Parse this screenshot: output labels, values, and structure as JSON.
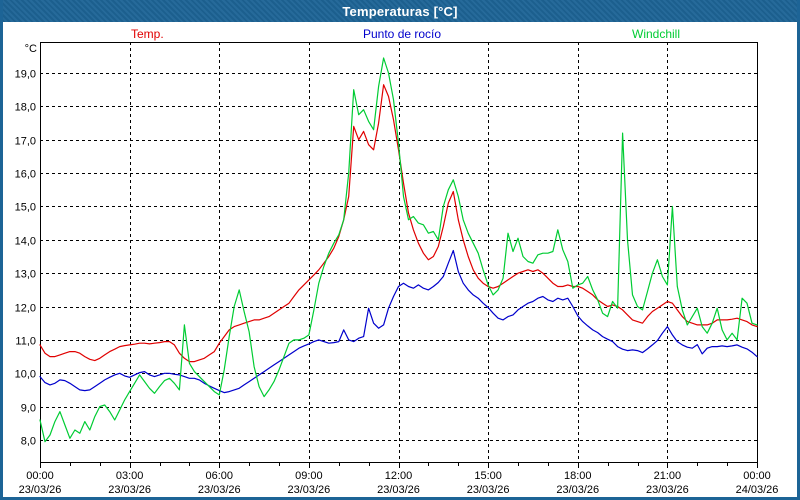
{
  "window": {
    "title": "Temperaturas [°C]"
  },
  "colors": {
    "titlebar_bg": "#1d6496",
    "titlebar_text": "#ffffff",
    "window_border": "#1d6496",
    "plot_bg": "#ffffff",
    "grid": "#000000",
    "axis": "#000000",
    "temp": "#e00000",
    "dew_point": "#0000cc",
    "windchill": "#00cc33"
  },
  "chart_data": {
    "type": "line",
    "title": "Temperaturas [°C]",
    "y_unit": "°C",
    "ylim": [
      7.34,
      19.93
    ],
    "xlim_hours": [
      0,
      24
    ],
    "x_step_minutes": 10,
    "grid": true,
    "legend_position": "top",
    "minor_x_tick_hours": 1,
    "y_ticks": [
      {
        "value": 19,
        "label": "19,0"
      },
      {
        "value": 18,
        "label": "18,0"
      },
      {
        "value": 17,
        "label": "17,0"
      },
      {
        "value": 16,
        "label": "16,0"
      },
      {
        "value": 15,
        "label": "15,0"
      },
      {
        "value": 14,
        "label": "14,0"
      },
      {
        "value": 13,
        "label": "13,0"
      },
      {
        "value": 12,
        "label": "12,0"
      },
      {
        "value": 11,
        "label": "11,0"
      },
      {
        "value": 10,
        "label": "10,0"
      },
      {
        "value": 9,
        "label": "9,0"
      },
      {
        "value": 8,
        "label": "8,0"
      }
    ],
    "x_ticks": [
      {
        "hour": 0,
        "time": "00:00",
        "date": "23/03/26"
      },
      {
        "hour": 3,
        "time": "03:00",
        "date": "23/03/26"
      },
      {
        "hour": 6,
        "time": "06:00",
        "date": "23/03/26"
      },
      {
        "hour": 9,
        "time": "09:00",
        "date": "23/03/26"
      },
      {
        "hour": 12,
        "time": "12:00",
        "date": "23/03/26"
      },
      {
        "hour": 15,
        "time": "15:00",
        "date": "23/03/26"
      },
      {
        "hour": 18,
        "time": "18:00",
        "date": "23/03/26"
      },
      {
        "hour": 21,
        "time": "21:00",
        "date": "23/03/26"
      },
      {
        "hour": 24,
        "time": "00:00",
        "date": "24/03/26"
      }
    ],
    "series": [
      {
        "name": "Temp.",
        "color": "#e00000",
        "values": [
          10.85,
          10.6,
          10.5,
          10.5,
          10.55,
          10.6,
          10.65,
          10.65,
          10.6,
          10.5,
          10.42,
          10.38,
          10.45,
          10.55,
          10.65,
          10.72,
          10.8,
          10.83,
          10.85,
          10.87,
          10.9,
          10.9,
          10.88,
          10.9,
          10.92,
          10.95,
          10.95,
          10.85,
          10.6,
          10.45,
          10.35,
          10.35,
          10.4,
          10.45,
          10.55,
          10.65,
          10.9,
          11.1,
          11.3,
          11.4,
          11.45,
          11.5,
          11.55,
          11.6,
          11.6,
          11.65,
          11.7,
          11.8,
          11.9,
          12.0,
          12.1,
          12.3,
          12.5,
          12.65,
          12.8,
          12.95,
          13.1,
          13.3,
          13.5,
          13.75,
          14.1,
          14.6,
          15.3,
          17.4,
          17.0,
          17.25,
          16.85,
          16.7,
          17.5,
          18.65,
          18.3,
          17.6,
          16.7,
          15.7,
          14.8,
          14.3,
          13.9,
          13.6,
          13.4,
          13.5,
          13.8,
          14.4,
          15.1,
          15.45,
          14.6,
          14.0,
          13.5,
          13.1,
          12.85,
          12.7,
          12.6,
          12.55,
          12.6,
          12.7,
          12.8,
          12.9,
          13.0,
          13.05,
          13.1,
          13.05,
          13.1,
          13.0,
          12.85,
          12.7,
          12.6,
          12.6,
          12.65,
          12.6,
          12.6,
          12.55,
          12.45,
          12.35,
          12.2,
          12.1,
          12.0,
          12.05,
          12.0,
          11.9,
          11.75,
          11.6,
          11.55,
          11.5,
          11.7,
          11.85,
          11.95,
          12.05,
          12.15,
          12.1,
          11.9,
          11.7,
          11.55,
          11.5,
          11.45,
          11.45,
          11.45,
          11.5,
          11.6,
          11.6,
          11.6,
          11.62,
          11.65,
          11.6,
          11.55,
          11.45,
          11.4
        ]
      },
      {
        "name": "Punto de rocío",
        "color": "#0000cc",
        "values": [
          9.9,
          9.72,
          9.65,
          9.7,
          9.8,
          9.78,
          9.7,
          9.6,
          9.5,
          9.48,
          9.5,
          9.6,
          9.7,
          9.8,
          9.88,
          9.95,
          10.0,
          9.92,
          9.88,
          9.95,
          10.02,
          10.05,
          9.95,
          9.9,
          9.95,
          10.0,
          10.0,
          9.97,
          9.95,
          9.9,
          9.85,
          9.85,
          9.8,
          9.7,
          9.62,
          9.55,
          9.48,
          9.42,
          9.45,
          9.5,
          9.55,
          9.65,
          9.75,
          9.85,
          9.95,
          10.05,
          10.15,
          10.25,
          10.35,
          10.45,
          10.55,
          10.65,
          10.75,
          10.82,
          10.88,
          10.95,
          11.0,
          10.95,
          10.9,
          10.92,
          10.95,
          11.3,
          11.0,
          10.95,
          11.05,
          11.1,
          11.95,
          11.5,
          11.35,
          11.45,
          11.95,
          12.3,
          12.6,
          12.7,
          12.6,
          12.55,
          12.65,
          12.55,
          12.5,
          12.6,
          12.72,
          12.9,
          13.3,
          13.68,
          13.05,
          12.7,
          12.5,
          12.35,
          12.25,
          12.1,
          11.97,
          11.8,
          11.65,
          11.6,
          11.7,
          11.75,
          11.9,
          12.0,
          12.1,
          12.15,
          12.25,
          12.3,
          12.2,
          12.15,
          12.25,
          12.2,
          12.25,
          12.0,
          11.72,
          11.55,
          11.42,
          11.3,
          11.22,
          11.1,
          11.02,
          10.95,
          10.8,
          10.72,
          10.68,
          10.7,
          10.68,
          10.62,
          10.73,
          10.85,
          10.98,
          11.2,
          11.4,
          11.15,
          10.95,
          10.85,
          10.78,
          10.75,
          10.86,
          10.58,
          10.75,
          10.8,
          10.8,
          10.82,
          10.8,
          10.82,
          10.85,
          10.78,
          10.73,
          10.63,
          10.5
        ]
      },
      {
        "name": "Windchill",
        "color": "#00cc33",
        "values": [
          8.6,
          7.95,
          8.15,
          8.55,
          8.85,
          8.45,
          8.05,
          8.3,
          8.2,
          8.55,
          8.3,
          8.7,
          9.0,
          9.05,
          8.85,
          8.6,
          8.9,
          9.2,
          9.45,
          9.7,
          9.95,
          9.75,
          9.55,
          9.4,
          9.6,
          9.78,
          9.85,
          9.7,
          9.5,
          11.45,
          10.3,
          10.05,
          9.9,
          9.75,
          9.6,
          9.45,
          9.35,
          10.1,
          11.1,
          12.0,
          12.5,
          11.85,
          11.25,
          10.2,
          9.6,
          9.3,
          9.5,
          9.75,
          10.1,
          10.5,
          10.9,
          11.0,
          11.0,
          11.05,
          11.15,
          11.9,
          12.7,
          13.2,
          13.6,
          13.9,
          14.15,
          14.6,
          16.0,
          18.5,
          17.75,
          17.9,
          17.55,
          17.3,
          18.6,
          19.45,
          19.0,
          18.2,
          16.9,
          15.3,
          14.6,
          14.7,
          14.5,
          14.45,
          14.2,
          14.25,
          14.0,
          15.0,
          15.5,
          15.8,
          15.3,
          14.6,
          14.2,
          13.9,
          13.6,
          13.1,
          12.65,
          12.35,
          12.5,
          12.85,
          14.2,
          13.65,
          14.05,
          13.5,
          13.35,
          13.3,
          13.55,
          13.6,
          13.6,
          13.65,
          14.3,
          13.7,
          13.35,
          12.55,
          12.65,
          12.7,
          12.9,
          12.5,
          12.2,
          11.8,
          11.7,
          12.15,
          11.95,
          17.2,
          14.0,
          12.35,
          12.0,
          11.9,
          12.45,
          13.0,
          13.4,
          12.9,
          12.65,
          15.0,
          12.6,
          11.9,
          11.45,
          11.7,
          11.95,
          11.4,
          11.2,
          11.5,
          11.95,
          11.3,
          11.0,
          11.2,
          11.0,
          12.25,
          12.1,
          11.5,
          11.45
        ]
      }
    ]
  }
}
